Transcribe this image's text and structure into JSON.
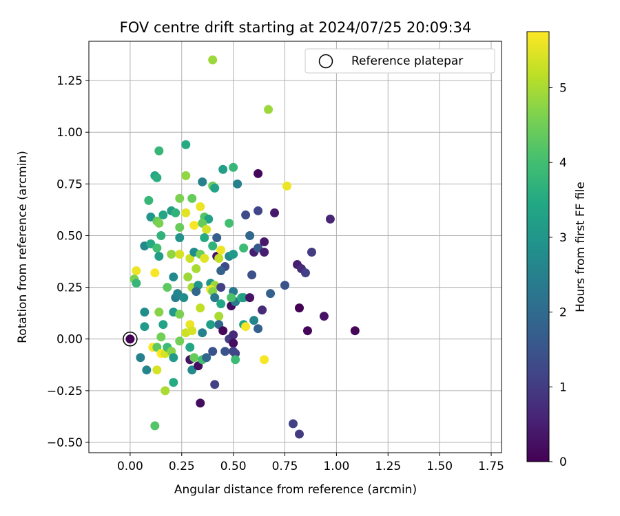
{
  "chart_data": {
    "type": "scatter",
    "title": "FOV centre drift starting at 2024/07/25 20:09:34",
    "xlabel": "Angular distance from reference (arcmin)",
    "ylabel": "Rotation from reference (arcmin)",
    "xlim": [
      -0.2,
      1.8
    ],
    "ylim": [
      -0.55,
      1.44
    ],
    "xticks": [
      0.0,
      0.25,
      0.5,
      0.75,
      1.0,
      1.25,
      1.5,
      1.75
    ],
    "xtick_labels": [
      "0.00",
      "0.25",
      "0.50",
      "0.75",
      "1.00",
      "1.25",
      "1.50",
      "1.75"
    ],
    "yticks": [
      -0.5,
      -0.25,
      0.0,
      0.25,
      0.5,
      0.75,
      1.0,
      1.25
    ],
    "ytick_labels": [
      "−0.50",
      "−0.25",
      "0.00",
      "0.25",
      "0.50",
      "0.75",
      "1.00",
      "1.25"
    ],
    "grid": true,
    "legend": {
      "position": "top-right",
      "label": "Reference platepar",
      "marker": "open-circle"
    },
    "reference_point": [
      0.0,
      0.0
    ],
    "colorbar": {
      "label": "Hours from first FF file",
      "min": 0,
      "max": 5.75,
      "ticks": [
        0,
        1,
        2,
        3,
        4,
        5
      ],
      "tick_labels": [
        "0",
        "1",
        "2",
        "3",
        "4",
        "5"
      ],
      "colormap": "viridis"
    },
    "points": [
      [
        0.4,
        1.35,
        4.9
      ],
      [
        0.67,
        1.11,
        4.9
      ],
      [
        0.27,
        0.94,
        3.5
      ],
      [
        0.14,
        0.91,
        3.8
      ],
      [
        0.12,
        0.79,
        3.4
      ],
      [
        0.13,
        0.78,
        3.6
      ],
      [
        0.27,
        0.79,
        4.8
      ],
      [
        0.45,
        0.82,
        3.2
      ],
      [
        0.5,
        0.83,
        3.8
      ],
      [
        0.62,
        0.8,
        0.1
      ],
      [
        0.35,
        0.76,
        2.5
      ],
      [
        0.4,
        0.74,
        4.4
      ],
      [
        0.41,
        0.73,
        3.3
      ],
      [
        0.52,
        0.75,
        2.5
      ],
      [
        0.76,
        0.74,
        5.6
      ],
      [
        0.09,
        0.67,
        3.8
      ],
      [
        0.24,
        0.68,
        4.6
      ],
      [
        0.3,
        0.68,
        4.4
      ],
      [
        0.1,
        0.59,
        3.0
      ],
      [
        0.16,
        0.6,
        3.4
      ],
      [
        0.2,
        0.62,
        3.2
      ],
      [
        0.22,
        0.61,
        3.7
      ],
      [
        0.27,
        0.61,
        5.5
      ],
      [
        0.34,
        0.64,
        5.6
      ],
      [
        0.36,
        0.59,
        4.2
      ],
      [
        0.38,
        0.58,
        3.3
      ],
      [
        0.56,
        0.6,
        1.3
      ],
      [
        0.62,
        0.62,
        1.2
      ],
      [
        0.7,
        0.61,
        0.4
      ],
      [
        0.97,
        0.58,
        0.6
      ],
      [
        0.13,
        0.57,
        4.4
      ],
      [
        0.14,
        0.56,
        4.6
      ],
      [
        0.24,
        0.54,
        4.4
      ],
      [
        0.31,
        0.55,
        5.7
      ],
      [
        0.35,
        0.56,
        4.4
      ],
      [
        0.37,
        0.53,
        5.4
      ],
      [
        0.48,
        0.56,
        4.0
      ],
      [
        0.07,
        0.45,
        2.7
      ],
      [
        0.1,
        0.46,
        3.5
      ],
      [
        0.13,
        0.44,
        4.0
      ],
      [
        0.15,
        0.5,
        3.7
      ],
      [
        0.24,
        0.49,
        2.9
      ],
      [
        0.36,
        0.49,
        3.5
      ],
      [
        0.42,
        0.49,
        1.7
      ],
      [
        0.58,
        0.5,
        1.9
      ],
      [
        0.55,
        0.44,
        3.9
      ],
      [
        0.6,
        0.42,
        0.5
      ],
      [
        0.62,
        0.44,
        1.6
      ],
      [
        0.65,
        0.47,
        0.4
      ],
      [
        0.65,
        0.42,
        0.5
      ],
      [
        0.88,
        0.42,
        1.0
      ],
      [
        0.81,
        0.36,
        0.5
      ],
      [
        0.83,
        0.34,
        0.7
      ],
      [
        0.85,
        0.32,
        1.1
      ],
      [
        0.14,
        0.4,
        3.2
      ],
      [
        0.2,
        0.41,
        4.8
      ],
      [
        0.24,
        0.41,
        5.4
      ],
      [
        0.29,
        0.39,
        5.3
      ],
      [
        0.31,
        0.42,
        2.8
      ],
      [
        0.34,
        0.41,
        4.5
      ],
      [
        0.36,
        0.39,
        5.5
      ],
      [
        0.4,
        0.45,
        3.7
      ],
      [
        0.42,
        0.4,
        0.3
      ],
      [
        0.44,
        0.43,
        5.6
      ],
      [
        0.43,
        0.39,
        5.2
      ],
      [
        0.46,
        0.35,
        1.3
      ],
      [
        0.48,
        0.4,
        2.7
      ],
      [
        0.5,
        0.41,
        3.1
      ],
      [
        0.44,
        0.33,
        1.8
      ],
      [
        0.59,
        0.31,
        1.4
      ],
      [
        0.75,
        0.26,
        1.5
      ],
      [
        0.03,
        0.33,
        5.6
      ],
      [
        0.02,
        0.29,
        4.6
      ],
      [
        0.03,
        0.27,
        3.8
      ],
      [
        0.12,
        0.32,
        5.7
      ],
      [
        0.18,
        0.25,
        4.3
      ],
      [
        0.21,
        0.3,
        2.7
      ],
      [
        0.28,
        0.3,
        4.9
      ],
      [
        0.3,
        0.25,
        5.0
      ],
      [
        0.32,
        0.34,
        5.0
      ],
      [
        0.33,
        0.26,
        3.0
      ],
      [
        0.32,
        0.23,
        1.9
      ],
      [
        0.39,
        0.27,
        3.0
      ],
      [
        0.41,
        0.26,
        4.9
      ],
      [
        0.39,
        0.24,
        5.6
      ],
      [
        0.4,
        0.23,
        4.7
      ],
      [
        0.41,
        0.2,
        2.3
      ],
      [
        0.44,
        0.25,
        1.1
      ],
      [
        0.44,
        0.17,
        3.4
      ],
      [
        0.49,
        0.16,
        0.2
      ],
      [
        0.5,
        0.23,
        2.3
      ],
      [
        0.51,
        0.18,
        2.4
      ],
      [
        0.49,
        0.2,
        4.1
      ],
      [
        0.54,
        0.2,
        3.6
      ],
      [
        0.55,
        0.2,
        3.2
      ],
      [
        0.58,
        0.2,
        0.3
      ],
      [
        0.68,
        0.22,
        1.8
      ],
      [
        0.22,
        0.2,
        2.4
      ],
      [
        0.23,
        0.22,
        2.6
      ],
      [
        0.14,
        0.13,
        4.7
      ],
      [
        0.07,
        0.13,
        2.8
      ],
      [
        0.21,
        0.13,
        3.1
      ],
      [
        0.24,
        0.12,
        4.6
      ],
      [
        0.26,
        0.2,
        2.8
      ],
      [
        0.34,
        0.15,
        5.2
      ],
      [
        0.43,
        0.11,
        5.0
      ],
      [
        0.43,
        0.07,
        1.9
      ],
      [
        0.39,
        0.07,
        3.2
      ],
      [
        0.6,
        0.09,
        2.6
      ],
      [
        0.62,
        0.05,
        1.8
      ],
      [
        0.55,
        0.07,
        3.3
      ],
      [
        0.56,
        0.06,
        5.7
      ],
      [
        0.64,
        0.14,
        0.7
      ],
      [
        0.82,
        0.15,
        0.0
      ],
      [
        0.94,
        0.11,
        0.3
      ],
      [
        0.86,
        0.04,
        0.1
      ],
      [
        1.09,
        0.04,
        0.1
      ],
      [
        0.07,
        0.06,
        3.1
      ],
      [
        0.16,
        0.07,
        3.3
      ],
      [
        0.15,
        0.01,
        4.5
      ],
      [
        0.24,
        -0.01,
        4.5
      ],
      [
        0.27,
        0.03,
        5.3
      ],
      [
        0.29,
        0.07,
        5.6
      ],
      [
        0.3,
        0.04,
        5.4
      ],
      [
        0.35,
        0.03,
        2.5
      ],
      [
        0.45,
        0.04,
        0.1
      ],
      [
        0.48,
        0.0,
        1.0
      ],
      [
        0.5,
        0.02,
        0.7
      ],
      [
        0.5,
        -0.02,
        0.2
      ],
      [
        0.46,
        -0.06,
        1.5
      ],
      [
        0.51,
        -0.07,
        1.1
      ],
      [
        0.5,
        -0.06,
        1.2
      ],
      [
        0.51,
        -0.1,
        3.9
      ],
      [
        0.65,
        -0.1,
        5.7
      ],
      [
        0.05,
        -0.09,
        2.5
      ],
      [
        0.08,
        -0.15,
        2.6
      ],
      [
        0.11,
        -0.04,
        5.7
      ],
      [
        0.13,
        -0.04,
        4.3
      ],
      [
        0.15,
        -0.07,
        5.8
      ],
      [
        0.17,
        -0.07,
        5.4
      ],
      [
        0.18,
        -0.04,
        3.9
      ],
      [
        0.2,
        -0.06,
        4.7
      ],
      [
        0.21,
        -0.09,
        3.1
      ],
      [
        0.13,
        -0.15,
        5.4
      ],
      [
        0.21,
        -0.21,
        3.5
      ],
      [
        0.17,
        -0.25,
        5.0
      ],
      [
        0.29,
        -0.04,
        3.4
      ],
      [
        0.29,
        -0.1,
        0.3
      ],
      [
        0.3,
        -0.15,
        2.7
      ],
      [
        0.31,
        -0.09,
        4.4
      ],
      [
        0.33,
        -0.13,
        0.2
      ],
      [
        0.35,
        -0.1,
        4.0
      ],
      [
        0.37,
        -0.09,
        1.9
      ],
      [
        0.4,
        -0.06,
        1.5
      ],
      [
        0.41,
        -0.22,
        1.1
      ],
      [
        0.34,
        -0.31,
        0.2
      ],
      [
        0.12,
        -0.42,
        4.2
      ],
      [
        0.79,
        -0.41,
        1.1
      ],
      [
        0.82,
        -0.46,
        1.0
      ]
    ]
  }
}
